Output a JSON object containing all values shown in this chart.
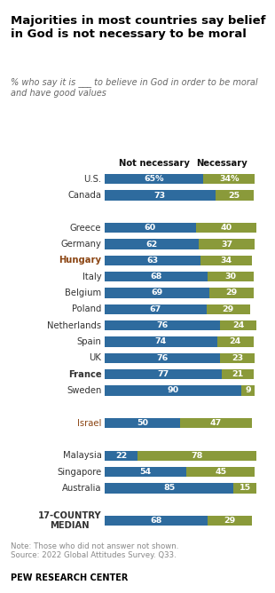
{
  "title": "Majorities in most countries say belief\nin God is not necessary to be moral",
  "subtitle": "% who say it is ___ to believe in God in order to be moral\nand have good values",
  "bar_colors": [
    "#2e6b9e",
    "#8a9a3a"
  ],
  "countries": [
    "U.S.",
    "Canada",
    "",
    "Greece",
    "Germany",
    "Hungary",
    "Italy",
    "Belgium",
    "Poland",
    "Netherlands",
    "Spain",
    "UK",
    "France",
    "Sweden",
    "",
    "Israel",
    "",
    "Malaysia",
    "Singapore",
    "Australia",
    "",
    "17-COUNTRY\nMEDIAN"
  ],
  "not_necessary": [
    65,
    73,
    null,
    60,
    62,
    63,
    68,
    69,
    67,
    76,
    74,
    76,
    77,
    90,
    null,
    50,
    null,
    22,
    54,
    85,
    null,
    68
  ],
  "necessary": [
    34,
    25,
    null,
    40,
    37,
    34,
    30,
    29,
    29,
    24,
    24,
    23,
    21,
    9,
    null,
    47,
    null,
    78,
    45,
    15,
    null,
    29
  ],
  "show_pct_first": [
    true,
    false,
    null,
    false,
    false,
    false,
    false,
    false,
    false,
    false,
    false,
    false,
    false,
    false,
    null,
    false,
    null,
    false,
    false,
    false,
    null,
    false
  ],
  "hungary_color": "#8b4513",
  "israel_color": "#8b4513",
  "note": "Note: Those who did not answer not shown.\nSource: 2022 Global Attitudes Survey. Q33.",
  "source_label": "PEW RESEARCH CENTER",
  "bar_height": 0.62,
  "header_not_necessary": "Not necessary",
  "header_necessary": "Necessary"
}
